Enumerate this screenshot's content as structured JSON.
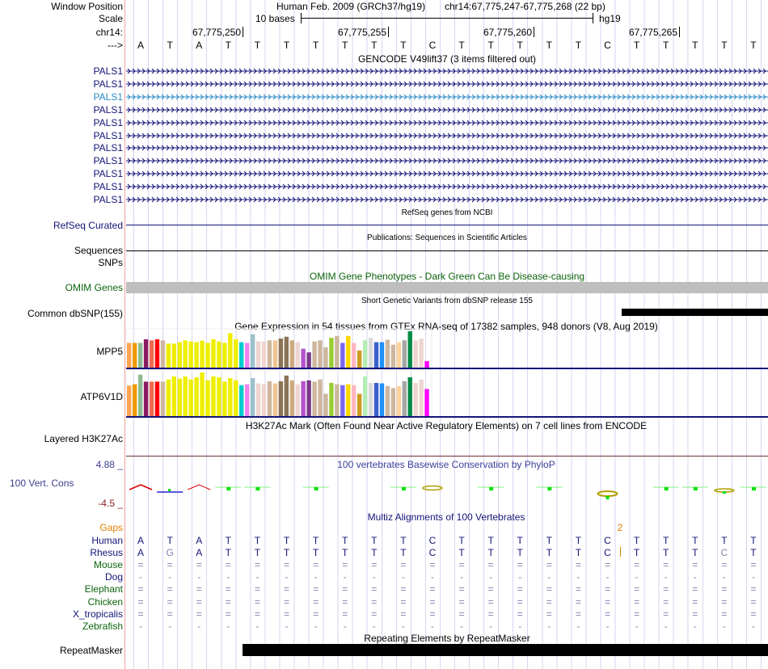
{
  "header": {
    "window_position_label": "Window Position",
    "assembly": "Human Feb. 2009 (GRCh37/hg19)",
    "position": "chr14:67,775,247-67,775,268 (22 bp)",
    "scale_label": "Scale",
    "scale_text": "10 bases",
    "scale_db": "hg19",
    "chrom_label": "chr14:",
    "ticks": [
      "67,775,250",
      "67,775,255",
      "67,775,260",
      "67,775,265"
    ],
    "strand_label": "--->",
    "sequence": [
      "A",
      "T",
      "A",
      "T",
      "T",
      "T",
      "T",
      "T",
      "T",
      "T",
      "C",
      "T",
      "T",
      "T",
      "T",
      "T",
      "C",
      "T",
      "T",
      "T",
      "T",
      "T"
    ]
  },
  "gencode": {
    "title": "GENCODE V49lift37 (3 items filtered out)",
    "genes": [
      "PALS1",
      "PALS1",
      "PALS1",
      "PALS1",
      "PALS1",
      "PALS1",
      "PALS1",
      "PALS1",
      "PALS1",
      "PALS1",
      "PALS1"
    ],
    "highlight_index": 2
  },
  "refseq": {
    "title": "RefSeq genes from NCBI",
    "label": "RefSeq Curated"
  },
  "publications": {
    "title": "Publications: Sequences in Scientific Articles",
    "label": "Sequences"
  },
  "snps": {
    "label": "SNPs"
  },
  "omim": {
    "title": "OMIM Gene Phenotypes - Dark Green Can Be Disease-causing",
    "label": "OMIM Genes"
  },
  "dbsnp": {
    "title": "Short Genetic Variants from dbSNP release 155",
    "label": "Common dbSNP(155)"
  },
  "gtex": {
    "title": "Gene Expression in 54 tissues from GTEx RNA-seq of 17382 samples, 948 donors (V8, Aug 2019)",
    "colors": [
      "#FFA54F",
      "#EE9A00",
      "#8FBC8F",
      "#8B1C62",
      "#EE6A50",
      "#FF0000",
      "#CDB79E",
      "#EEEE00",
      "#EEEE00",
      "#EEEE00",
      "#EEEE00",
      "#EEEE00",
      "#EEEE00",
      "#EEEE00",
      "#EEEE00",
      "#EEEE00",
      "#EEEE00",
      "#EEEE00",
      "#EEEE00",
      "#EEEE00",
      "#00CDCD",
      "#EE82EE",
      "#9AC0CD",
      "#EED5D2",
      "#EED5D2",
      "#CDB79E",
      "#EEC591",
      "#8B7355",
      "#8B7355",
      "#CDAA7D",
      "#EED5D2",
      "#B452CD",
      "#7A378B",
      "#CDB79E",
      "#CDB79E",
      "#CDB79E",
      "#9ACD32",
      "#CDB79E",
      "#7A67EE",
      "#FFD700",
      "#FFB6C1",
      "#CD9B1D",
      "#B4EEB4",
      "#D9D9D9",
      "#3A5FCD",
      "#1E90FF",
      "#CDB79E",
      "#CDB79E",
      "#FFD39B",
      "#A6A6A6",
      "#008B45",
      "#EED5D2",
      "#EED5D2",
      "#FF00FF"
    ],
    "genes": [
      {
        "name": "MPP5",
        "values": [
          0.68,
          0.68,
          0.68,
          0.78,
          0.75,
          0.78,
          0.75,
          0.66,
          0.66,
          0.7,
          0.75,
          0.72,
          0.7,
          0.74,
          0.68,
          0.78,
          0.72,
          0.68,
          0.95,
          0.78,
          0.7,
          0.68,
          0.92,
          0.72,
          0.72,
          0.75,
          0.75,
          0.8,
          0.85,
          0.75,
          0.7,
          0.52,
          0.42,
          0.72,
          0.75,
          0.56,
          0.82,
          0.87,
          0.68,
          0.87,
          0.68,
          0.47,
          0.75,
          0.82,
          0.7,
          0.7,
          0.77,
          0.63,
          0.7,
          0.75,
          1.0,
          0.75,
          0.8,
          0.18
        ]
      },
      {
        "name": "ATP6V1D",
        "values": [
          0.7,
          0.73,
          0.95,
          0.79,
          0.79,
          0.79,
          0.79,
          0.84,
          0.91,
          0.86,
          0.91,
          0.84,
          0.89,
          1.0,
          0.82,
          0.91,
          0.89,
          0.79,
          0.87,
          0.82,
          0.71,
          0.73,
          0.87,
          0.75,
          0.73,
          0.8,
          0.75,
          0.8,
          0.93,
          0.82,
          0.73,
          0.8,
          0.82,
          0.79,
          0.84,
          0.51,
          0.76,
          0.73,
          0.71,
          0.73,
          0.71,
          0.51,
          0.91,
          0.76,
          0.76,
          0.75,
          0.69,
          0.64,
          0.69,
          0.8,
          0.89,
          0.76,
          0.84,
          0.62
        ]
      }
    ]
  },
  "h3k27ac": {
    "title": "H3K27Ac Mark (Often Found Near Active Regulatory Elements) on 7 cell lines from ENCODE",
    "label": "Layered H3K27Ac"
  },
  "conservation": {
    "title": "100 vertebrates Basewise Conservation by PhyloP",
    "label": "100 Vert. Cons",
    "max_label": "4.88 _",
    "min_label": "-4.5 _",
    "marks": [
      {
        "base": 0,
        "kind": "caret",
        "color": "#e00000"
      },
      {
        "base": 1,
        "kind": "bar",
        "color": "#2020d0"
      },
      {
        "base": 2,
        "kind": "caret",
        "color": "#e00000"
      },
      {
        "base": 3,
        "kind": "tee",
        "color": "#00e000"
      },
      {
        "base": 4,
        "kind": "tee",
        "color": "#00e000"
      },
      {
        "base": 6,
        "kind": "tee",
        "color": "#00e000"
      },
      {
        "base": 9,
        "kind": "tee",
        "color": "#00e000"
      },
      {
        "base": 10,
        "kind": "loop",
        "color": "#b0a000"
      },
      {
        "base": 12,
        "kind": "tee",
        "color": "#00e000"
      },
      {
        "base": 14,
        "kind": "tee",
        "color": "#00e000"
      },
      {
        "base": 16,
        "kind": "loop-low",
        "color": "#b0a000"
      },
      {
        "base": 18,
        "kind": "tee",
        "color": "#00e000"
      },
      {
        "base": 19,
        "kind": "tee",
        "color": "#00e000"
      },
      {
        "base": 20,
        "kind": "loop-small",
        "color": "#b0a000"
      },
      {
        "base": 21,
        "kind": "tee",
        "color": "#00e000"
      }
    ]
  },
  "multiz": {
    "title": "Multiz Alignments of 100 Vertebrates",
    "gaps_label": "Gaps",
    "gap_count": "2",
    "gap_color": "#e08000",
    "species": [
      {
        "name": "Human",
        "group": "navy",
        "bases": [
          "A",
          "T",
          "A",
          "T",
          "T",
          "T",
          "T",
          "T",
          "T",
          "T",
          "C",
          "T",
          "T",
          "T",
          "T",
          "T",
          "C",
          "T",
          "T",
          "T",
          "T",
          "T"
        ]
      },
      {
        "name": "Rhesus",
        "group": "navy",
        "bases": [
          "A",
          "G",
          "A",
          "T",
          "T",
          "T",
          "T",
          "T",
          "T",
          "T",
          "C",
          "T",
          "T",
          "T",
          "T",
          "T",
          "C",
          "T",
          "T",
          "T",
          "C",
          "T"
        ],
        "mismatch": [
          1,
          20
        ]
      },
      {
        "name": "Mouse",
        "group": "green",
        "bases": [
          "=",
          "=",
          "=",
          "=",
          "=",
          "=",
          "=",
          "=",
          "=",
          "=",
          "=",
          "=",
          "=",
          "=",
          "=",
          "=",
          "=",
          "=",
          "=",
          "=",
          "=",
          "="
        ]
      },
      {
        "name": "Dog",
        "group": "navy",
        "bases": [
          "-",
          "-",
          "-",
          "-",
          "-",
          "-",
          "-",
          "-",
          "-",
          "-",
          "-",
          "-",
          "-",
          "-",
          "-",
          "-",
          "-",
          "-",
          "-",
          "-",
          "-",
          "-"
        ]
      },
      {
        "name": "Elephant",
        "group": "green",
        "bases": [
          "=",
          "=",
          "=",
          "=",
          "=",
          "=",
          "=",
          "=",
          "=",
          "=",
          "=",
          "=",
          "=",
          "=",
          "=",
          "=",
          "=",
          "=",
          "=",
          "=",
          "=",
          "="
        ]
      },
      {
        "name": "Chicken",
        "group": "green",
        "bases": [
          "=",
          "=",
          "=",
          "=",
          "=",
          "=",
          "=",
          "=",
          "=",
          "=",
          "=",
          "=",
          "=",
          "=",
          "=",
          "=",
          "=",
          "=",
          "=",
          "=",
          "=",
          "="
        ]
      },
      {
        "name": "X_tropicalis",
        "group": "navy",
        "bases": [
          "=",
          "=",
          "=",
          "=",
          "=",
          "=",
          "=",
          "=",
          "=",
          "=",
          "=",
          "=",
          "=",
          "=",
          "=",
          "=",
          "=",
          "=",
          "=",
          "=",
          "=",
          "="
        ]
      },
      {
        "name": "Zebrafish",
        "group": "green",
        "bases": [
          "-",
          "-",
          "-",
          "-",
          "-",
          "-",
          "-",
          "-",
          "-",
          "-",
          "-",
          "-",
          "-",
          "-",
          "-",
          "-",
          "-",
          "-",
          "-",
          "-",
          "-",
          "-"
        ]
      }
    ]
  },
  "repeatmasker": {
    "title": "Repeating Elements by RepeatMasker",
    "label": "RepeatMasker"
  }
}
